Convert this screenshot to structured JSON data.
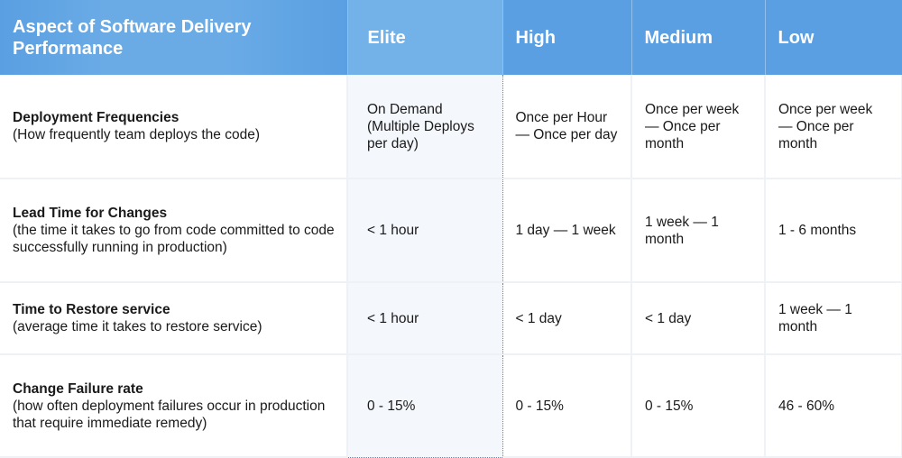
{
  "header": {
    "aspect": "Aspect of Software Delivery Performance",
    "levels": [
      "Elite",
      "High",
      "Medium",
      "Low"
    ]
  },
  "rows": [
    {
      "aspect": "Deployment Frequencies",
      "description": "(How frequently team deploys the code)",
      "values": [
        "On Demand (Multiple Deploys per day)",
        "Once per Hour — Once per day",
        "Once per week — Once per month",
        "Once per week — Once per month"
      ]
    },
    {
      "aspect": "Lead Time for Changes",
      "description": "(the time it takes to go from code committed to code successfully running in production)",
      "values": [
        "< 1 hour",
        "1 day — 1 week",
        "1 week — 1 month",
        "1 - 6 months"
      ]
    },
    {
      "aspect": "Time to Restore service",
      "description": "(average time it takes to restore service)",
      "values": [
        "< 1 hour",
        "< 1 day",
        "< 1 day",
        "1 week — 1 month"
      ]
    },
    {
      "aspect": "Change Failure rate",
      "description": "(how often deployment failures occur in production that require immediate remedy)",
      "values": [
        "0 - 15%",
        "0 - 15%",
        "0 - 15%",
        "46 - 60%"
      ]
    }
  ]
}
